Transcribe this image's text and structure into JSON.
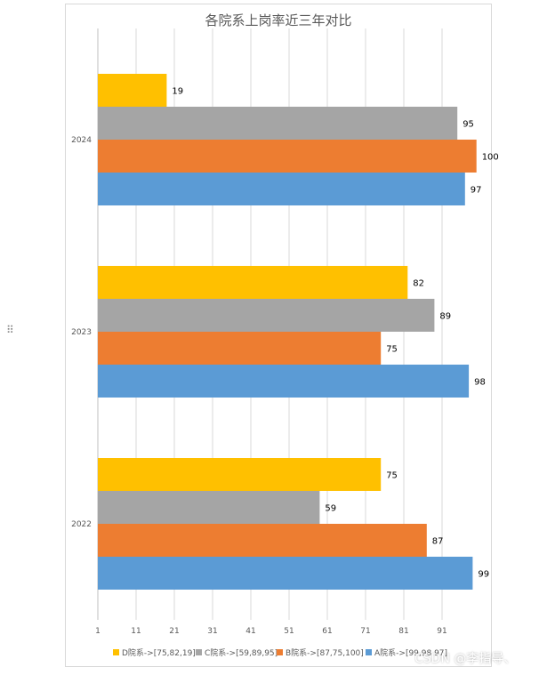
{
  "chart_data": {
    "type": "bar",
    "orientation": "horizontal",
    "title": "各院系上岗率近三年对比",
    "categories": [
      "2022",
      "2023",
      "2024"
    ],
    "series": [
      {
        "name": "A院系->[99,98,97]",
        "values": [
          99,
          98,
          97
        ],
        "color": "#5B9BD5"
      },
      {
        "name": "B院系->[87,75,100]",
        "values": [
          87,
          75,
          100
        ],
        "color": "#ED7D31"
      },
      {
        "name": "C院系->[59,89,95]",
        "values": [
          59,
          89,
          95
        ],
        "color": "#A5A5A5"
      },
      {
        "name": "D院系->[75,82,19]",
        "values": [
          75,
          82,
          19
        ],
        "color": "#FFC000"
      }
    ],
    "xlim": [
      1,
      101
    ],
    "xticks": [
      1,
      11,
      21,
      31,
      41,
      51,
      61,
      71,
      81,
      91
    ],
    "grid": true,
    "legend": "bottom"
  },
  "watermark": "CSDN @李指导、"
}
